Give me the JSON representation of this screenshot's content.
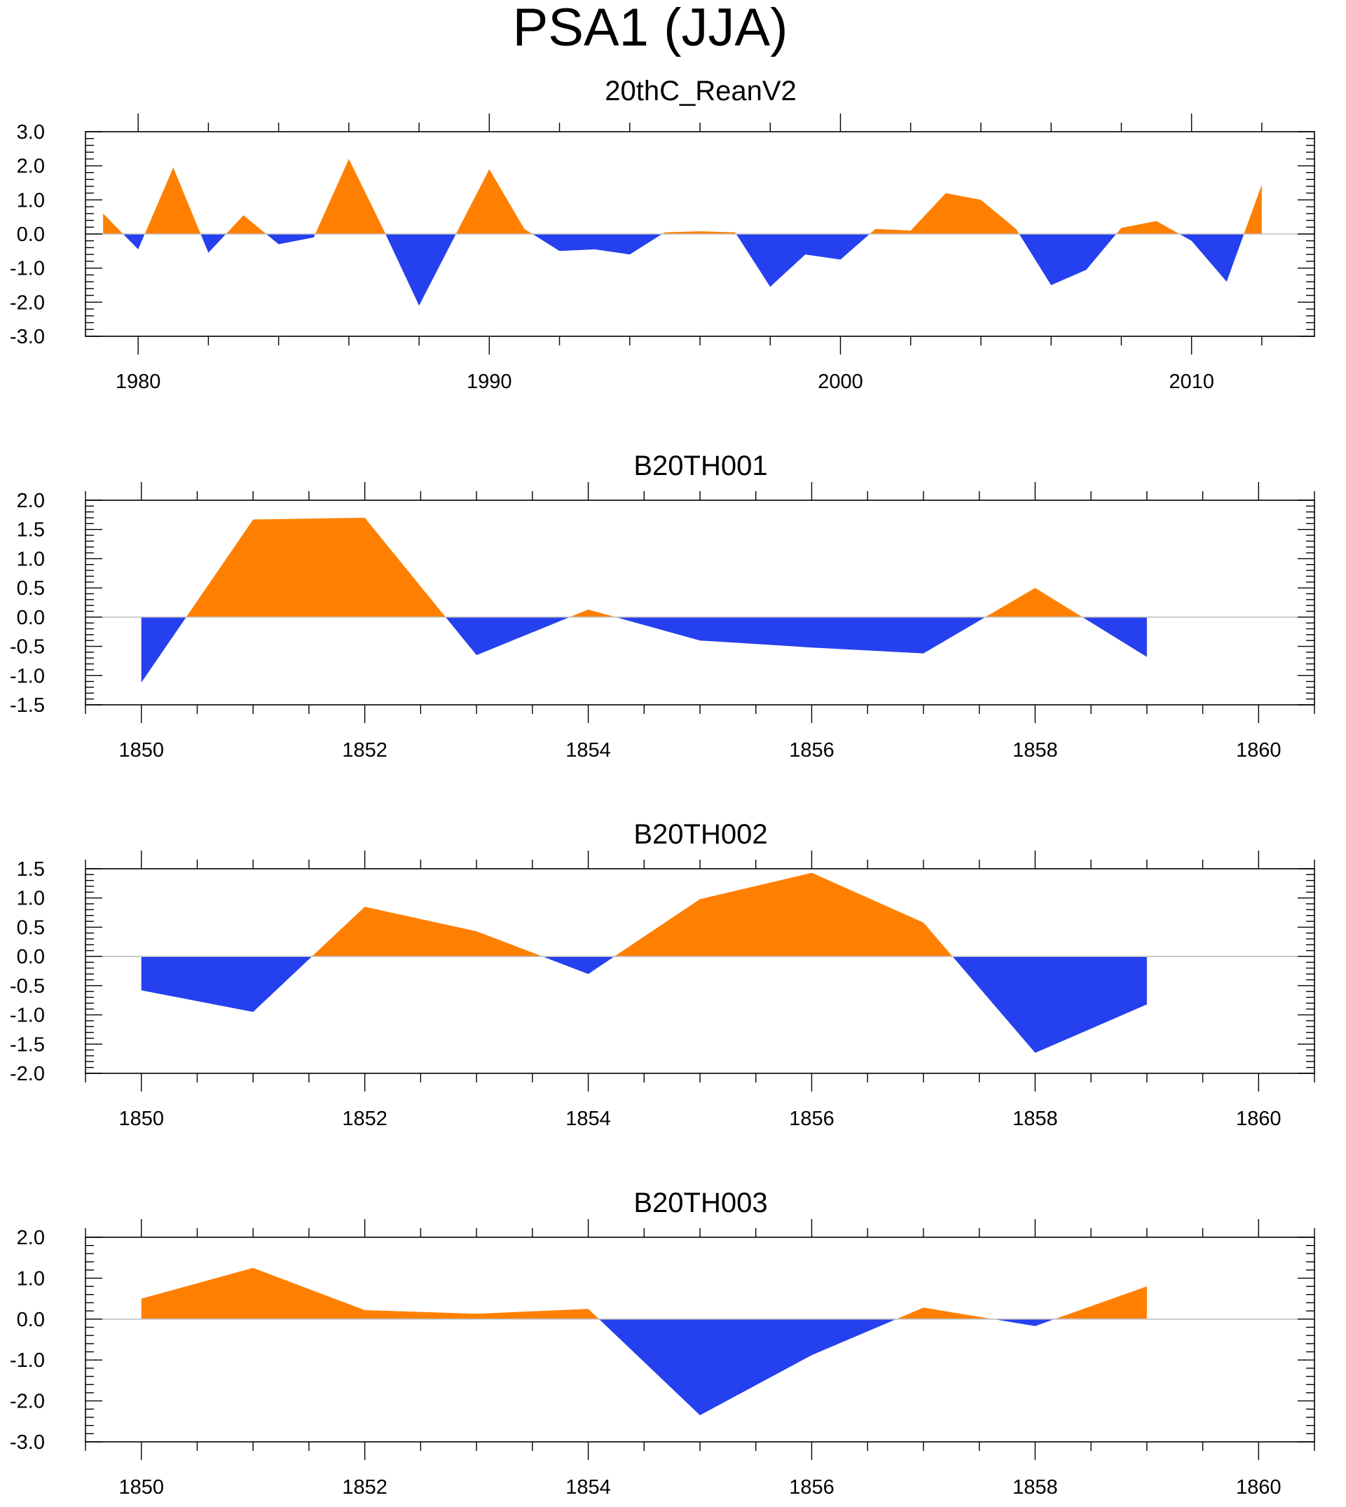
{
  "title": "PSA1 (JJA)",
  "colors": {
    "positive": "#ff8000",
    "negative": "#2540ee",
    "zero_line": "#c0c0c0",
    "axis": "#000000"
  },
  "chart_data": [
    {
      "type": "area",
      "title": "20thC_ReanV2",
      "x": [
        1979,
        1980,
        1981,
        1982,
        1983,
        1984,
        1985,
        1986,
        1987,
        1988,
        1989,
        1990,
        1991,
        1992,
        1993,
        1994,
        1995,
        1996,
        1997,
        1998,
        1999,
        2000,
        2001,
        2002,
        2003,
        2004,
        2005,
        2006,
        2007,
        2008,
        2009,
        2010,
        2011,
        2012
      ],
      "values": [
        0.6,
        -0.45,
        1.95,
        -0.55,
        0.55,
        -0.3,
        -0.1,
        2.2,
        0.1,
        -2.1,
        -0.1,
        1.9,
        0.15,
        -0.5,
        -0.45,
        -0.6,
        0.05,
        0.08,
        0.05,
        -1.55,
        -0.6,
        -0.75,
        0.15,
        0.1,
        1.2,
        1.0,
        0.15,
        -1.5,
        -1.05,
        0.18,
        0.38,
        -0.2,
        -1.4,
        1.45
      ],
      "xlim": [
        1978.5,
        2013.5
      ],
      "ylim": [
        -3.0,
        3.0
      ],
      "x_ticks": [
        1980,
        1990,
        2000,
        2010
      ],
      "x_tick_labels": [
        "1980",
        "1990",
        "2000",
        "2010"
      ],
      "y_ticks": [
        -3.0,
        -2.0,
        -1.0,
        0.0,
        1.0,
        2.0,
        3.0
      ],
      "y_tick_labels": [
        "-3.0",
        "-2.0",
        "-1.0",
        "0.0",
        "1.0",
        "2.0",
        "3.0"
      ],
      "x_minor_step": 2,
      "y_minor_step": 0.2
    },
    {
      "type": "area",
      "title": "B20TH001",
      "x": [
        1850,
        1851,
        1852,
        1853,
        1854,
        1855,
        1856,
        1857,
        1858,
        1859
      ],
      "values": [
        -1.12,
        1.67,
        1.7,
        -0.65,
        0.13,
        -0.4,
        -0.52,
        -0.62,
        0.5,
        -0.68
      ],
      "xlim": [
        1849.5,
        1860.5
      ],
      "ylim": [
        -1.5,
        2.0
      ],
      "x_ticks": [
        1850,
        1852,
        1854,
        1856,
        1858,
        1860
      ],
      "x_tick_labels": [
        "1850",
        "1852",
        "1854",
        "1856",
        "1858",
        "1860"
      ],
      "y_ticks": [
        -1.5,
        -1.0,
        -0.5,
        0.0,
        0.5,
        1.0,
        1.5,
        2.0
      ],
      "y_tick_labels": [
        "-1.5",
        "-1.0",
        "-0.5",
        "0.0",
        "0.5",
        "1.0",
        "1.5",
        "2.0"
      ],
      "x_minor_step": 0.5,
      "y_minor_step": 0.1
    },
    {
      "type": "area",
      "title": "B20TH002",
      "x": [
        1850,
        1851,
        1852,
        1853,
        1854,
        1855,
        1856,
        1857,
        1858,
        1859
      ],
      "values": [
        -0.58,
        -0.95,
        0.85,
        0.43,
        -0.3,
        0.98,
        1.43,
        0.58,
        -1.65,
        -0.82
      ],
      "xlim": [
        1849.5,
        1860.5
      ],
      "ylim": [
        -2.0,
        1.5
      ],
      "x_ticks": [
        1850,
        1852,
        1854,
        1856,
        1858,
        1860
      ],
      "x_tick_labels": [
        "1850",
        "1852",
        "1854",
        "1856",
        "1858",
        "1860"
      ],
      "y_ticks": [
        -2.0,
        -1.5,
        -1.0,
        -0.5,
        0.0,
        0.5,
        1.0,
        1.5
      ],
      "y_tick_labels": [
        "-2.0",
        "-1.5",
        "-1.0",
        "-0.5",
        "0.0",
        "0.5",
        "1.0",
        "1.5"
      ],
      "x_minor_step": 0.5,
      "y_minor_step": 0.1
    },
    {
      "type": "area",
      "title": "B20TH003",
      "x": [
        1850,
        1851,
        1852,
        1853,
        1854,
        1855,
        1856,
        1857,
        1858,
        1859
      ],
      "values": [
        0.5,
        1.25,
        0.22,
        0.13,
        0.25,
        -2.35,
        -0.88,
        0.28,
        -0.17,
        0.8
      ],
      "xlim": [
        1849.5,
        1860.5
      ],
      "ylim": [
        -3.0,
        2.0
      ],
      "x_ticks": [
        1850,
        1852,
        1854,
        1856,
        1858,
        1860
      ],
      "x_tick_labels": [
        "1850",
        "1852",
        "1854",
        "1856",
        "1858",
        "1860"
      ],
      "y_ticks": [
        -3.0,
        -2.0,
        -1.0,
        0.0,
        1.0,
        2.0
      ],
      "y_tick_labels": [
        "-3.0",
        "-2.0",
        "-1.0",
        "0.0",
        "1.0",
        "2.0"
      ],
      "x_minor_step": 0.5,
      "y_minor_step": 0.2
    }
  ]
}
